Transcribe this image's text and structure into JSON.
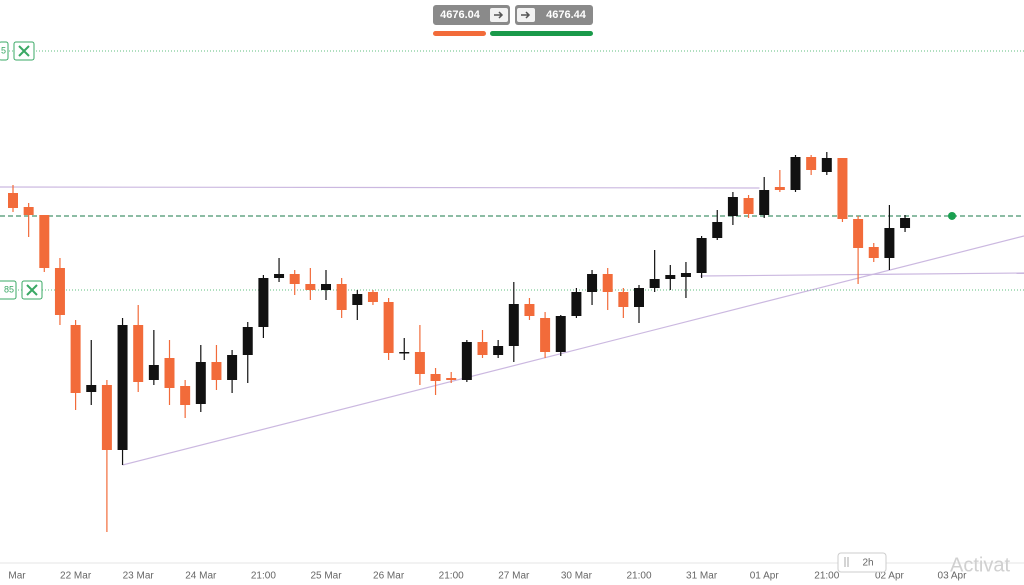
{
  "chart_data": {
    "type": "candlestick",
    "categories": [
      "Mar",
      null,
      null,
      null,
      "22 Mar",
      null,
      null,
      null,
      "23 Mar",
      null,
      null,
      null,
      "24 Mar",
      null,
      null,
      null,
      "21:00",
      null,
      null,
      null,
      "25 Mar",
      null,
      null,
      null,
      "26 Mar",
      null,
      null,
      null,
      "21:00",
      null,
      null,
      null,
      "27 Mar",
      null,
      null,
      null,
      "30 Mar",
      null,
      null,
      null,
      "21:00",
      null,
      null,
      null,
      "31 Mar",
      null,
      null,
      null,
      "01 Apr",
      null,
      null,
      null,
      "21:00",
      null,
      null,
      null,
      "02 Apr",
      null,
      null,
      null,
      "03 Apr"
    ],
    "open": [
      4699,
      4685,
      4677,
      4624,
      4567,
      4500,
      4507,
      4442,
      4567,
      4512,
      4534,
      4506,
      4488,
      4530,
      4512,
      4537,
      4565,
      4614,
      4618,
      4608,
      4602,
      4608,
      4587,
      4600,
      4590,
      4539,
      4540,
      4518,
      4514,
      4512,
      4550,
      4537,
      4546,
      4588,
      4574,
      4540,
      4576,
      4600,
      4618,
      4600,
      4585,
      4604,
      4613,
      4615,
      4619,
      4654,
      4676,
      4694,
      4677,
      4705,
      4702,
      4735,
      4720,
      4734,
      4673,
      4645,
      4634,
      4664,
      null,
      null,
      null
    ],
    "high": [
      4707,
      4689,
      4677,
      4634,
      4572,
      4552,
      4512,
      4574,
      4587,
      4562,
      4552,
      4512,
      4547,
      4547,
      4542,
      4570,
      4617,
      4634,
      4622,
      4624,
      4622,
      4614,
      4602,
      4602,
      4594,
      4554,
      4567,
      4524,
      4520,
      4552,
      4562,
      4552,
      4610,
      4594,
      4580,
      4577,
      4604,
      4622,
      4624,
      4604,
      4607,
      4642,
      4627,
      4630,
      4656,
      4682,
      4700,
      4697,
      4715,
      4722,
      4737,
      4737,
      4740,
      4734,
      4676,
      4649,
      4687,
      4677,
      null,
      null,
      null
    ],
    "low": [
      4680,
      4655,
      4620,
      4567,
      4482,
      4487,
      4360,
      4427,
      4500,
      4507,
      4487,
      4474,
      4480,
      4502,
      4499,
      4509,
      4554,
      4610,
      4597,
      4592,
      4592,
      4574,
      4572,
      4587,
      4532,
      4532,
      4507,
      4497,
      4509,
      4510,
      4534,
      4534,
      4530,
      4572,
      4534,
      4536,
      4574,
      4587,
      4582,
      4574,
      4569,
      4600,
      4602,
      4594,
      4614,
      4652,
      4667,
      4674,
      4674,
      4700,
      4700,
      4717,
      4717,
      4670,
      4608,
      4630,
      4622,
      4660,
      null,
      null,
      null
    ],
    "close": [
      4684,
      4677,
      4624,
      4577,
      4499,
      4507,
      4442,
      4567,
      4510,
      4527,
      4504,
      4487,
      4530,
      4512,
      4537,
      4565,
      4614,
      4618,
      4608,
      4602,
      4608,
      4582,
      4598,
      4590,
      4539,
      4540,
      4518,
      4511,
      4512,
      4550,
      4537,
      4546,
      4588,
      4576,
      4540,
      4576,
      4600,
      4618,
      4600,
      4585,
      4604,
      4613,
      4617,
      4619,
      4654,
      4670,
      4695,
      4678,
      4702,
      4702,
      4735,
      4722,
      4734,
      4673,
      4644,
      4634,
      4664,
      4674,
      null,
      null,
      null
    ],
    "up_color": "#111111",
    "down_color": "#f26b3a",
    "ylim": [
      4330,
      4892
    ],
    "bid": 4676.04,
    "ask": 4676.44,
    "orders": [
      {
        "label": "5",
        "value": 4841
      },
      {
        "label": "85",
        "value": 4602
      }
    ],
    "trendlines": [
      {
        "x": [
          -0.83,
          47.7
        ],
        "y": [
          4705,
          4704
        ]
      },
      {
        "x": [
          7,
          64.6
        ],
        "y": [
          4427,
          4656
        ]
      },
      {
        "x": [
          43.9,
          64.6
        ],
        "y": [
          4616,
          4619
        ]
      }
    ],
    "timeframe": "2h",
    "watermark": "Activat"
  }
}
